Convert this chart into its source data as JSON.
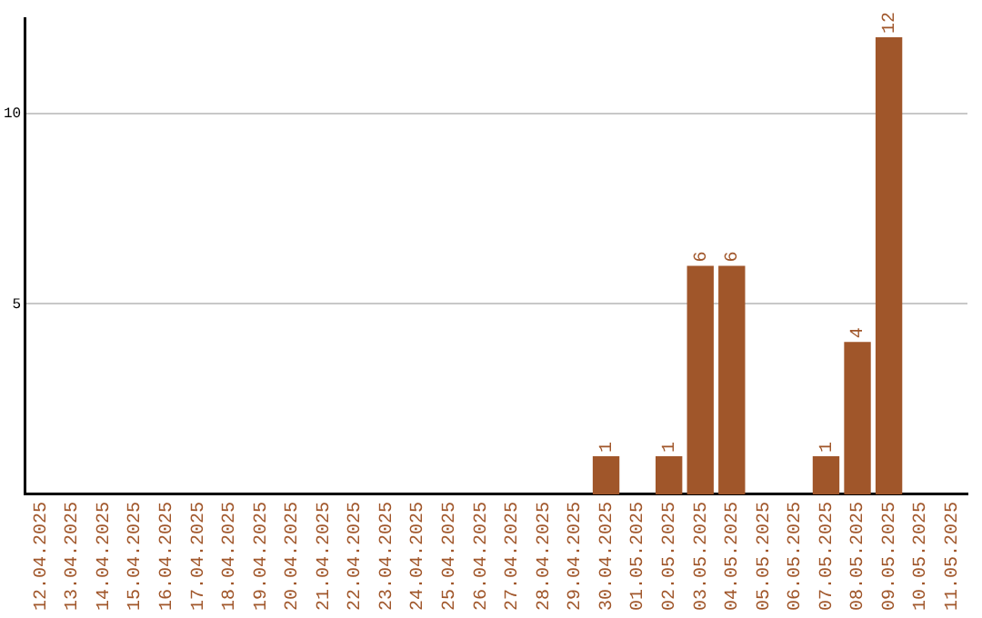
{
  "chart_data": {
    "type": "bar",
    "categories": [
      "12.04.2025",
      "13.04.2025",
      "14.04.2025",
      "15.04.2025",
      "16.04.2025",
      "17.04.2025",
      "18.04.2025",
      "19.04.2025",
      "20.04.2025",
      "21.04.2025",
      "22.04.2025",
      "23.04.2025",
      "24.04.2025",
      "25.04.2025",
      "26.04.2025",
      "27.04.2025",
      "28.04.2025",
      "29.04.2025",
      "30.04.2025",
      "01.05.2025",
      "02.05.2025",
      "03.05.2025",
      "04.05.2025",
      "05.05.2025",
      "06.05.2025",
      "07.05.2025",
      "08.05.2025",
      "09.05.2025",
      "10.05.2025",
      "11.05.2025"
    ],
    "values": [
      0,
      0,
      0,
      0,
      0,
      0,
      0,
      0,
      0,
      0,
      0,
      0,
      0,
      0,
      0,
      0,
      0,
      0,
      1,
      0,
      1,
      6,
      6,
      0,
      0,
      1,
      4,
      12,
      0,
      0
    ],
    "value_labels": [
      null,
      null,
      null,
      null,
      null,
      null,
      null,
      null,
      null,
      null,
      null,
      null,
      null,
      null,
      null,
      null,
      null,
      null,
      "1",
      null,
      "1",
      "6",
      "6",
      null,
      null,
      "1",
      "4",
      "12",
      null,
      null
    ],
    "color": "#a0562a",
    "ylim": [
      0,
      12.5
    ],
    "yticks": [
      5,
      10
    ],
    "grid": "y",
    "legend": false
  }
}
